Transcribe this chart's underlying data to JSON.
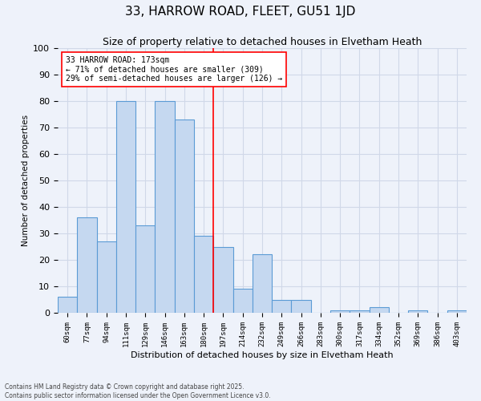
{
  "title": "33, HARROW ROAD, FLEET, GU51 1JD",
  "subtitle": "Size of property relative to detached houses in Elvetham Heath",
  "xlabel": "Distribution of detached houses by size in Elvetham Heath",
  "ylabel": "Number of detached properties",
  "categories": [
    "60sqm",
    "77sqm",
    "94sqm",
    "111sqm",
    "129sqm",
    "146sqm",
    "163sqm",
    "180sqm",
    "197sqm",
    "214sqm",
    "232sqm",
    "249sqm",
    "266sqm",
    "283sqm",
    "300sqm",
    "317sqm",
    "334sqm",
    "352sqm",
    "369sqm",
    "386sqm",
    "403sqm"
  ],
  "values": [
    6,
    36,
    27,
    80,
    33,
    80,
    73,
    29,
    25,
    9,
    22,
    5,
    5,
    0,
    1,
    1,
    2,
    0,
    1,
    0,
    1
  ],
  "bar_color": "#c5d8f0",
  "bar_edge_color": "#5b9bd5",
  "grid_color": "#d0d8e8",
  "background_color": "#eef2fa",
  "property_line_x": 7.5,
  "property_line_color": "red",
  "annotation_text": "33 HARROW ROAD: 173sqm\n← 71% of detached houses are smaller (309)\n29% of semi-detached houses are larger (126) →",
  "annotation_box_color": "white",
  "annotation_box_edge_color": "red",
  "footer_text": "Contains HM Land Registry data © Crown copyright and database right 2025.\nContains public sector information licensed under the Open Government Licence v3.0.",
  "ylim": [
    0,
    100
  ],
  "title_fontsize": 11,
  "subtitle_fontsize": 9
}
